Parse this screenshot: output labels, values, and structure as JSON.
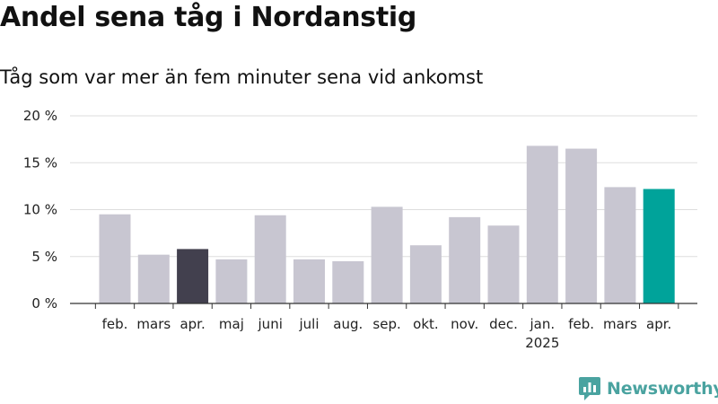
{
  "title": "Andel sena tåg i Nordanstig",
  "subtitle": "Tåg som var mer än fem minuter sena vid ankomst",
  "brand": {
    "name": "Newsworthy",
    "icon": "newsworthy-logo-icon",
    "color": "#4aa3a0"
  },
  "chart_data": {
    "type": "bar",
    "categories": [
      "feb.",
      "mars",
      "apr.",
      "maj",
      "juni",
      "juli",
      "aug.",
      "sep.",
      "okt.",
      "nov.",
      "dec.",
      "jan.",
      "feb.",
      "mars",
      "apr."
    ],
    "year_labels": [
      {
        "category_index": 11,
        "label": "2025"
      }
    ],
    "values": [
      9.5,
      5.2,
      5.8,
      4.7,
      9.4,
      4.7,
      4.5,
      10.3,
      6.2,
      9.2,
      8.3,
      16.8,
      16.5,
      12.4,
      12.2
    ],
    "colors": [
      "#c8c6d1",
      "#c8c6d1",
      "#42404e",
      "#c8c6d1",
      "#c8c6d1",
      "#c8c6d1",
      "#c8c6d1",
      "#c8c6d1",
      "#c8c6d1",
      "#c8c6d1",
      "#c8c6d1",
      "#c8c6d1",
      "#c8c6d1",
      "#c8c6d1",
      "#00a39a"
    ],
    "yticks": [
      0,
      5,
      10,
      15,
      20
    ],
    "ytick_labels": [
      "0 %",
      "5 %",
      "10 %",
      "15 %",
      "20 %"
    ],
    "ylim": [
      0,
      20
    ],
    "xlabel": "",
    "ylabel": "",
    "grid": true,
    "legend": "none"
  }
}
